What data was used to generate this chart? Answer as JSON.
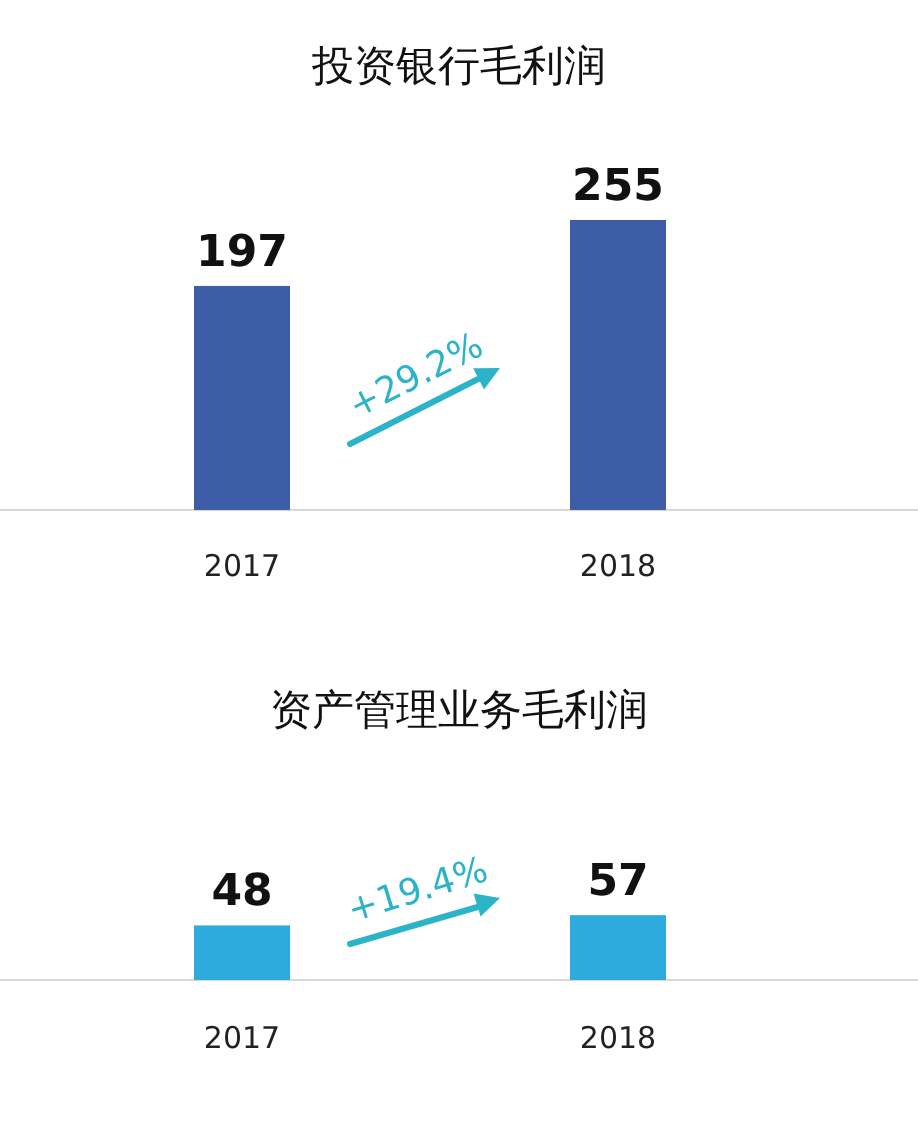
{
  "chart_data": [
    {
      "type": "bar",
      "title": "投资银行毛利润",
      "categories": [
        "2017",
        "2018"
      ],
      "values": [
        197,
        255
      ],
      "color": "#3d5da6",
      "data_labels": true,
      "annotations": [
        "+29.2%"
      ]
    },
    {
      "type": "bar",
      "title": "资产管理业务毛利润",
      "categories": [
        "2017",
        "2018"
      ],
      "values": [
        48,
        57
      ],
      "color": "#2eaadc",
      "data_labels": true,
      "annotations": [
        "+19.4%"
      ]
    }
  ]
}
